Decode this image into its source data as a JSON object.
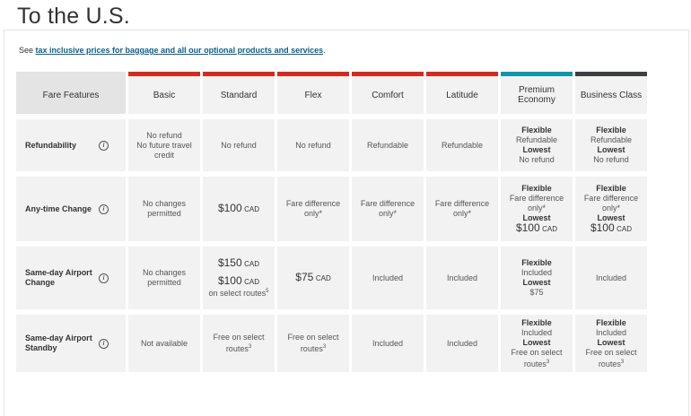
{
  "page": {
    "title": "To the U.S."
  },
  "intro": {
    "prefix": "See ",
    "link": "tax inclusive prices for baggage and all our optional products and services",
    "suffix": "."
  },
  "colors": {
    "basic_bar": "#d52b1e",
    "premium_bar": "#0f95ac",
    "business_bar": "#3d3f43"
  },
  "table": {
    "headers": [
      "Fare Features",
      "Basic",
      "Standard",
      "Flex",
      "Comfort",
      "Latitude",
      "Premium Economy",
      "Business Class"
    ],
    "info_icon": "i",
    "rows": {
      "refund": {
        "label": "Refundability",
        "basic": [
          "No refund",
          "No future travel credit"
        ],
        "standard": "No refund",
        "flex": "No refund",
        "comfort": "Refundable",
        "latitude": "Refundable",
        "pe": {
          "flex_label": "Flexible",
          "flex_val": "Refundable",
          "low_label": "Lowest",
          "low_val": "No refund"
        },
        "bc": {
          "flex_label": "Flexible",
          "flex_val": "Refundable",
          "low_label": "Lowest",
          "low_val": "No refund"
        }
      },
      "change": {
        "label": "Any-time Change",
        "basic": "No changes permitted",
        "standard_price": "$100",
        "currency": "CAD",
        "flex": "Fare difference only*",
        "comfort": "Fare difference only*",
        "latitude": "Fare difference only*",
        "pe": {
          "flex_label": "Flexible",
          "flex_val": "Fare difference only*",
          "low_label": "Lowest",
          "low_price": "$100",
          "low_cur": "CAD"
        },
        "bc": {
          "flex_label": "Flexible",
          "flex_val": "Fare difference only*",
          "low_label": "Lowest",
          "low_price": "$100",
          "low_cur": "CAD"
        }
      },
      "sameday": {
        "label": "Same-day Airport Change",
        "basic": "No changes permitted",
        "standard_price1": "$150",
        "standard_price2": "$100",
        "currency": "CAD",
        "standard_note": "on select routes",
        "standard_sup": "5",
        "flex_price": "$75",
        "comfort": "Included",
        "latitude": "Included",
        "pe": {
          "flex_label": "Flexible",
          "flex_val": "Included",
          "low_label": "Lowest",
          "low_val": "$75"
        },
        "bc": "Included"
      },
      "standby": {
        "label": "Same-day Airport Standby",
        "basic": "Not available",
        "standard": "Free on select routes",
        "standard_sup": "3",
        "flex": "Free on select routes",
        "flex_sup": "3",
        "comfort": "Included",
        "latitude": "Included",
        "pe": {
          "flex_label": "Flexible",
          "flex_val": "Included",
          "low_label": "Lowest",
          "low_val": "Free on select routes",
          "sup": "3"
        },
        "bc": {
          "flex_label": "Flexible",
          "flex_val": "Included",
          "low_label": "Lowest",
          "low_val": "Free on select routes",
          "sup": "3"
        }
      }
    }
  }
}
